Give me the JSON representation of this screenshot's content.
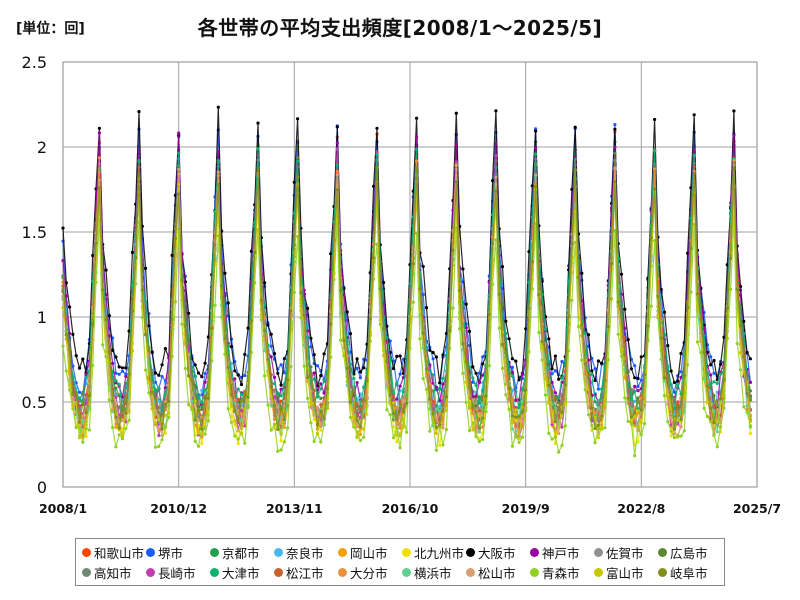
{
  "unit_label": "[単位：回]",
  "title": "各世帯の平均支出頻度[2008/1～2025/5]",
  "chart_data": {
    "type": "line",
    "title": "各世帯の平均支出頻度[2008/1～2025/5]",
    "unit": "単位：回",
    "ylim": [
      0,
      2.5
    ],
    "yticks": [
      "0",
      "0.5",
      "1",
      "1.5",
      "2",
      "2.5"
    ],
    "xlim": [
      "2008/1",
      "2025/7"
    ],
    "xticks": [
      "2008/1",
      "2010/12",
      "2013/11",
      "2016/10",
      "2019/9",
      "2022/8",
      "2025/7"
    ],
    "grid": true,
    "legend_position": "bottom",
    "pattern_note": "Monthly values; each series peaks around December (~1.8–2.3) and troughs in mid-year (~0.2–0.7).",
    "series": [
      {
        "name": "和歌山市",
        "color": "#ff4500",
        "peak": 2.0,
        "trough": 0.35
      },
      {
        "name": "堺市",
        "color": "#1e5bff",
        "peak": 2.05,
        "trough": 0.55
      },
      {
        "name": "京都市",
        "color": "#22a050",
        "peak": 1.95,
        "trough": 0.35
      },
      {
        "name": "奈良市",
        "color": "#4ab8f0",
        "peak": 1.9,
        "trough": 0.4
      },
      {
        "name": "岡山市",
        "color": "#f0a000",
        "peak": 1.85,
        "trough": 0.3
      },
      {
        "name": "北九州市",
        "color": "#f0e000",
        "peak": 1.8,
        "trough": 0.25
      },
      {
        "name": "大阪市",
        "color": "#000000",
        "peak": 2.15,
        "trough": 0.6
      },
      {
        "name": "神戸市",
        "color": "#9a00a0",
        "peak": 2.0,
        "trough": 0.45
      },
      {
        "name": "佐賀市",
        "color": "#909090",
        "peak": 1.85,
        "trough": 0.35
      },
      {
        "name": "広島市",
        "color": "#5a8a30",
        "peak": 1.9,
        "trough": 0.4
      },
      {
        "name": "高知市",
        "color": "#708870",
        "peak": 1.85,
        "trough": 0.35
      },
      {
        "name": "長崎市",
        "color": "#c040b0",
        "peak": 1.9,
        "trough": 0.3
      },
      {
        "name": "大津市",
        "color": "#10b070",
        "peak": 1.95,
        "trough": 0.45
      },
      {
        "name": "松江市",
        "color": "#c86030",
        "peak": 1.8,
        "trough": 0.35
      },
      {
        "name": "大分市",
        "color": "#e89040",
        "peak": 1.85,
        "trough": 0.3
      },
      {
        "name": "横浜市",
        "color": "#60d090",
        "peak": 1.75,
        "trough": 0.3
      },
      {
        "name": "松山市",
        "color": "#d8a070",
        "peak": 1.8,
        "trough": 0.3
      },
      {
        "name": "青森市",
        "color": "#90d020",
        "peak": 1.5,
        "trough": 0.2
      },
      {
        "name": "富山市",
        "color": "#c8c800",
        "peak": 1.7,
        "trough": 0.3
      },
      {
        "name": "岐阜市",
        "color": "#80901a",
        "peak": 1.8,
        "trough": 0.35
      }
    ]
  }
}
